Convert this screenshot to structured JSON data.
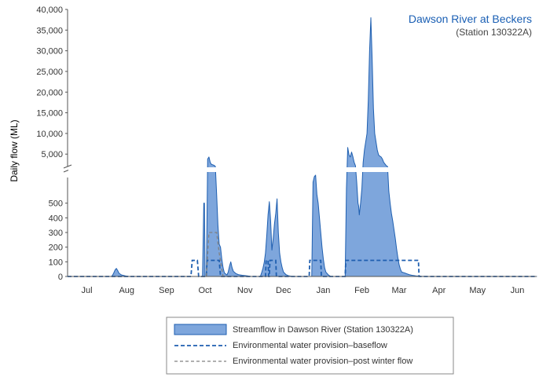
{
  "chart_data": {
    "type": "area",
    "title": "Dawson River at Beckers",
    "subtitle": "(Station 130322A)",
    "ylabel": "Daily flow (ML)",
    "xlabel": "",
    "x_range_days": [
      0,
      365
    ],
    "x_axis_start_date": "",
    "months": [
      {
        "label": "Jul",
        "center_day": 15
      },
      {
        "label": "Aug",
        "center_day": 46
      },
      {
        "label": "Sep",
        "center_day": 77
      },
      {
        "label": "Oct",
        "center_day": 107
      },
      {
        "label": "Nov",
        "center_day": 138
      },
      {
        "label": "Dec",
        "center_day": 168
      },
      {
        "label": "Jan",
        "center_day": 199
      },
      {
        "label": "Feb",
        "center_day": 229
      },
      {
        "label": "Mar",
        "center_day": 258
      },
      {
        "label": "Apr",
        "center_day": 289
      },
      {
        "label": "May",
        "center_day": 319
      },
      {
        "label": "Jun",
        "center_day": 350
      }
    ],
    "y_axis": {
      "break": true,
      "lower_range": [
        0,
        600
      ],
      "lower_ticks": [
        {
          "value": 0,
          "label": "0"
        },
        {
          "value": 100,
          "label": "100"
        },
        {
          "value": 200,
          "label": "200"
        },
        {
          "value": 300,
          "label": "300"
        },
        {
          "value": 400,
          "label": "400"
        },
        {
          "value": 500,
          "label": "500"
        }
      ],
      "upper_range": [
        2000,
        40000
      ],
      "upper_ticks": [
        {
          "value": 5000,
          "label": "5,000"
        },
        {
          "value": 10000,
          "label": "10,000"
        },
        {
          "value": 15000,
          "label": "15,000"
        },
        {
          "value": 20000,
          "label": "20,000"
        },
        {
          "value": 25000,
          "label": "25,000"
        },
        {
          "value": 30000,
          "label": "30,000"
        },
        {
          "value": 35000,
          "label": "35,000"
        },
        {
          "value": 40000,
          "label": "40,000"
        }
      ]
    },
    "series": [
      {
        "name": "Streamflow in Dawson River (Station 130322A)",
        "style": "area",
        "color": "#7ea6dc",
        "stroke": "#1f5fb0",
        "points": [
          [
            0,
            0
          ],
          [
            34,
            0
          ],
          [
            35,
            8
          ],
          [
            36,
            25
          ],
          [
            37,
            45
          ],
          [
            38,
            55
          ],
          [
            39,
            40
          ],
          [
            40,
            22
          ],
          [
            42,
            10
          ],
          [
            45,
            4
          ],
          [
            48,
            0
          ],
          [
            105,
            0
          ],
          [
            106,
            500
          ],
          [
            106.5,
            500
          ],
          [
            107,
            0
          ],
          [
            108,
            0
          ],
          [
            109,
            3800
          ],
          [
            110,
            4300
          ],
          [
            111,
            3000
          ],
          [
            112,
            2500
          ],
          [
            113,
            2400
          ],
          [
            114,
            2300
          ],
          [
            115,
            2000
          ],
          [
            116,
            560
          ],
          [
            117,
            350
          ],
          [
            118,
            220
          ],
          [
            119,
            200
          ],
          [
            120,
            120
          ],
          [
            121,
            60
          ],
          [
            122,
            25
          ],
          [
            124,
            10
          ],
          [
            125,
            30
          ],
          [
            126,
            70
          ],
          [
            127,
            100
          ],
          [
            128,
            60
          ],
          [
            129,
            35
          ],
          [
            131,
            20
          ],
          [
            133,
            12
          ],
          [
            136,
            8
          ],
          [
            140,
            4
          ],
          [
            143,
            0
          ],
          [
            150,
            0
          ],
          [
            151,
            25
          ],
          [
            152,
            55
          ],
          [
            153,
            95
          ],
          [
            154,
            160
          ],
          [
            155,
            280
          ],
          [
            156,
            420
          ],
          [
            157,
            510
          ],
          [
            158,
            380
          ],
          [
            159,
            180
          ],
          [
            160,
            260
          ],
          [
            161,
            360
          ],
          [
            162,
            430
          ],
          [
            163,
            530
          ],
          [
            164,
            300
          ],
          [
            165,
            160
          ],
          [
            166,
            100
          ],
          [
            167,
            60
          ],
          [
            168,
            30
          ],
          [
            170,
            12
          ],
          [
            172,
            5
          ],
          [
            175,
            0
          ],
          [
            190,
            0
          ],
          [
            191,
            1000
          ],
          [
            192,
            1350
          ],
          [
            193,
            1450
          ],
          [
            194,
            560
          ],
          [
            195,
            500
          ],
          [
            196,
            400
          ],
          [
            197,
            300
          ],
          [
            198,
            200
          ],
          [
            199,
            120
          ],
          [
            200,
            60
          ],
          [
            201,
            30
          ],
          [
            203,
            10
          ],
          [
            205,
            0
          ],
          [
            216,
            0
          ],
          [
            217,
            600
          ],
          [
            218,
            6600
          ],
          [
            219,
            4800
          ],
          [
            220,
            4300
          ],
          [
            221,
            5500
          ],
          [
            222,
            4400
          ],
          [
            223,
            3000
          ],
          [
            224,
            2200
          ],
          [
            225,
            1000
          ],
          [
            226,
            500
          ],
          [
            226.5,
            480
          ],
          [
            227,
            420
          ],
          [
            228,
            500
          ],
          [
            229,
            600
          ],
          [
            230,
            3000
          ],
          [
            231,
            6000
          ],
          [
            232,
            8000
          ],
          [
            233,
            10000
          ],
          [
            234,
            18000
          ],
          [
            235,
            30000
          ],
          [
            236,
            38000
          ],
          [
            237,
            28000
          ],
          [
            238,
            16000
          ],
          [
            239,
            10000
          ],
          [
            240,
            8000
          ],
          [
            241,
            6000
          ],
          [
            242,
            4800
          ],
          [
            243,
            4500
          ],
          [
            244,
            4300
          ],
          [
            245,
            3800
          ],
          [
            246,
            3000
          ],
          [
            247,
            2600
          ],
          [
            248,
            2200
          ],
          [
            249,
            2000
          ],
          [
            250,
            580
          ],
          [
            251,
            500
          ],
          [
            252,
            430
          ],
          [
            253,
            380
          ],
          [
            254,
            320
          ],
          [
            255,
            260
          ],
          [
            256,
            190
          ],
          [
            257,
            130
          ],
          [
            258,
            80
          ],
          [
            259,
            50
          ],
          [
            260,
            30
          ],
          [
            262,
            25
          ],
          [
            264,
            18
          ],
          [
            266,
            12
          ],
          [
            268,
            8
          ],
          [
            271,
            4
          ],
          [
            275,
            1
          ],
          [
            280,
            0
          ],
          [
            365,
            0
          ]
        ]
      },
      {
        "name": "Environmental water provision–baseflow",
        "style": "dashed",
        "color": "#1f5fb0",
        "points": [
          [
            0,
            0
          ],
          [
            96,
            0
          ],
          [
            97,
            110
          ],
          [
            101,
            110
          ],
          [
            102,
            0
          ],
          [
            108,
            0
          ],
          [
            108.5,
            110
          ],
          [
            118,
            110
          ],
          [
            119,
            0
          ],
          [
            154,
            0
          ],
          [
            154.5,
            110
          ],
          [
            156,
            110
          ],
          [
            156.5,
            0
          ],
          [
            157,
            0
          ],
          [
            157.5,
            110
          ],
          [
            162,
            110
          ],
          [
            162.5,
            0
          ],
          [
            188,
            0
          ],
          [
            188.5,
            110
          ],
          [
            197,
            110
          ],
          [
            197.5,
            0
          ],
          [
            216,
            0
          ],
          [
            216.5,
            110
          ],
          [
            273,
            110
          ],
          [
            273.5,
            0
          ],
          [
            365,
            0
          ]
        ]
      },
      {
        "name": "Environmental water provision–post winter flow",
        "style": "dashed",
        "color": "#808080",
        "points": [
          [
            104,
            0
          ],
          [
            108,
            0
          ],
          [
            110,
            300
          ],
          [
            116,
            300
          ],
          [
            118,
            160
          ],
          [
            121,
            0
          ],
          [
            126,
            0
          ]
        ]
      }
    ],
    "legend_position": "bottom"
  }
}
